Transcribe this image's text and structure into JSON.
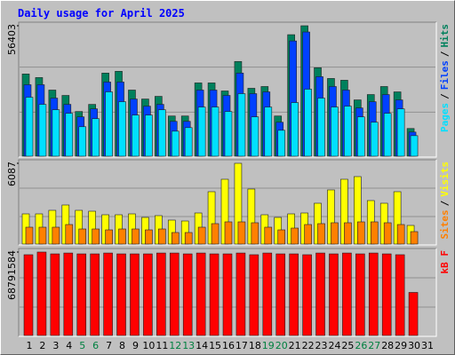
{
  "chart_data": [
    {
      "type": "bar",
      "title": "Daily usage for April 2025",
      "legend_separator": "/",
      "ylim": [
        0,
        56403
      ],
      "yticks": [
        56403
      ],
      "grid": true,
      "series": [
        {
          "name": "Hits",
          "color": "#00805c",
          "values": [
            35540,
            34000,
            28590,
            26270,
            19320,
            22400,
            35930,
            36700,
            28590,
            24720,
            25880,
            17380,
            17380,
            31680,
            31680,
            28200,
            40950,
            29360,
            30130,
            17380,
            52540,
            56403,
            38250,
            33610,
            32840,
            24340,
            26660,
            30130,
            27810,
            11980,
            0
          ]
        },
        {
          "name": "Files",
          "color": "#0040ff",
          "values": [
            30900,
            30900,
            25110,
            22410,
            17000,
            20470,
            32060,
            32060,
            24720,
            21630,
            22410,
            15070,
            15070,
            28590,
            28590,
            26270,
            35930,
            27040,
            27810,
            14680,
            49830,
            53700,
            34380,
            30130,
            28590,
            20860,
            23560,
            26650,
            24340,
            10430,
            0
          ]
        },
        {
          "name": "Pages",
          "color": "#00e0ff",
          "values": [
            25500,
            22410,
            20090,
            18540,
            12750,
            16220,
            27810,
            23560,
            17770,
            17770,
            20090,
            10820,
            12360,
            21250,
            21250,
            19320,
            27040,
            17000,
            21250,
            11200,
            23180,
            28970,
            25110,
            21250,
            21630,
            17000,
            14680,
            18540,
            20470,
            8880,
            0
          ]
        }
      ]
    },
    {
      "type": "bar",
      "legend_separator": "/",
      "ylim": [
        0,
        6087
      ],
      "yticks": [
        6087
      ],
      "grid": true,
      "series": [
        {
          "name": "Visits",
          "color": "#ffff00",
          "values": [
            2275,
            2275,
            2542,
            2944,
            2542,
            2475,
            2208,
            2208,
            2275,
            2007,
            2141,
            1806,
            1739,
            2342,
            3947,
            4884,
            6087,
            4148,
            2208,
            2007,
            2275,
            2342,
            3077,
            4081,
            4884,
            5084,
            3278,
            3077,
            3947,
            1405,
            0
          ]
        },
        {
          "name": "Sites",
          "color": "#ff8000",
          "values": [
            1271,
            1271,
            1271,
            1472,
            1137,
            1137,
            1070,
            1137,
            1137,
            1070,
            1137,
            870,
            870,
            1271,
            1539,
            1673,
            1673,
            1606,
            1271,
            1070,
            1204,
            1472,
            1539,
            1606,
            1606,
            1673,
            1673,
            1606,
            1472,
            937,
            0
          ]
        }
      ]
    },
    {
      "type": "bar",
      "ylim": [
        0,
        68791584
      ],
      "yticks": [
        68791584
      ],
      "grid": true,
      "categories": [
        "1",
        "2",
        "3",
        "4",
        "5",
        "6",
        "7",
        "8",
        "9",
        "10",
        "11",
        "12",
        "13",
        "14",
        "15",
        "16",
        "17",
        "18",
        "19",
        "20",
        "21",
        "22",
        "23",
        "24",
        "25",
        "26",
        "27",
        "28",
        "29",
        "30",
        "31"
      ],
      "category_colors": [
        "#000000",
        "#000000",
        "#000000",
        "#000000",
        "#008040",
        "#008040",
        "#000000",
        "#000000",
        "#000000",
        "#000000",
        "#000000",
        "#008040",
        "#008040",
        "#000000",
        "#000000",
        "#000000",
        "#000000",
        "#000000",
        "#008040",
        "#008040",
        "#000000",
        "#000000",
        "#000000",
        "#000000",
        "#000000",
        "#008040",
        "#008040",
        "#000000",
        "#000000",
        "#000000",
        "#000000"
      ],
      "series": [
        {
          "name": "kB F",
          "color": "#ff0000",
          "values": [
            66600000,
            68791584,
            67300000,
            68000000,
            67300000,
            67300000,
            68000000,
            67300000,
            67300000,
            67300000,
            68000000,
            68000000,
            67300000,
            68000000,
            67300000,
            67300000,
            68000000,
            66600000,
            68000000,
            67300000,
            67300000,
            66600000,
            68000000,
            67300000,
            68000000,
            67300000,
            68000000,
            67300000,
            66600000,
            35500000,
            0
          ]
        }
      ]
    }
  ]
}
